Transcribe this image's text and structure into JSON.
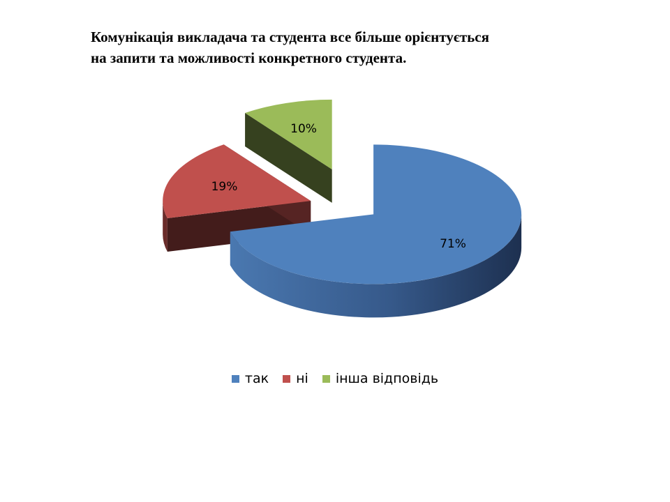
{
  "chart_data": {
    "type": "pie",
    "title": "Комунікація викладача та студента все більше орієнтується на запити та можливості конкретного студента.",
    "title_lines": [
      "Комунікація викладача та студента все більше орієнтується",
      "на запити та можливості конкретного студента."
    ],
    "style": "3d-exploded",
    "legend_position": "bottom",
    "categories": [
      "так",
      "ні",
      "інша відповідь"
    ],
    "values": [
      71,
      19,
      10
    ],
    "data_labels": [
      "71%",
      "19%",
      "10%"
    ],
    "colors": [
      "#4f81bd",
      "#c0504d",
      "#9bbb59"
    ]
  }
}
